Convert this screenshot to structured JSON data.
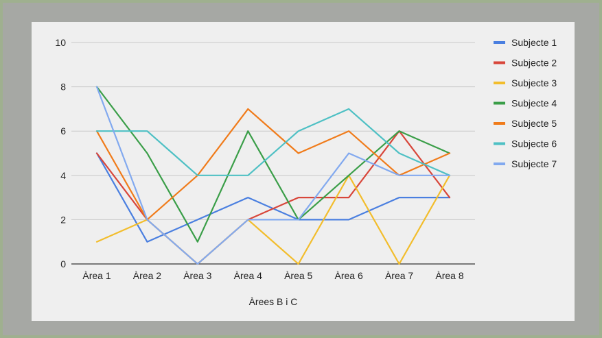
{
  "chart_data": {
    "type": "line",
    "title": "",
    "xlabel": "Àrees B i C",
    "ylabel": "",
    "ylim": [
      0,
      10
    ],
    "yticks": [
      0,
      2,
      4,
      6,
      8,
      10
    ],
    "grid": true,
    "legend_position": "right",
    "categories": [
      "Àrea 1",
      "Àrea 2",
      "Àrea 3",
      "Àrea 4",
      "Àrea 5",
      "Àrea 6",
      "Àrea 7",
      "Àrea 8"
    ],
    "series": [
      {
        "name": "Subjecte 1",
        "color": "#4a7fe0",
        "values": [
          5,
          1,
          2,
          3,
          2,
          2,
          3,
          3
        ]
      },
      {
        "name": "Subjecte 2",
        "color": "#d8463a",
        "values": [
          5,
          2,
          0,
          2,
          3,
          3,
          6,
          3
        ]
      },
      {
        "name": "Subjecte 3",
        "color": "#f2bd2c",
        "values": [
          1,
          2,
          0,
          2,
          0,
          4,
          0,
          4
        ]
      },
      {
        "name": "Subjecte 4",
        "color": "#3a9e48",
        "values": [
          8,
          5,
          1,
          6,
          2,
          4,
          6,
          5
        ]
      },
      {
        "name": "Subjecte 5",
        "color": "#f07b1a",
        "values": [
          6,
          2,
          4,
          7,
          5,
          6,
          4,
          5
        ]
      },
      {
        "name": "Subjecte 6",
        "color": "#4ec0c4",
        "values": [
          6,
          6,
          4,
          4,
          6,
          7,
          5,
          4
        ]
      },
      {
        "name": "Subjecte 7",
        "color": "#82a9ef",
        "values": [
          8,
          2,
          0,
          2,
          2,
          5,
          4,
          4
        ]
      }
    ]
  }
}
